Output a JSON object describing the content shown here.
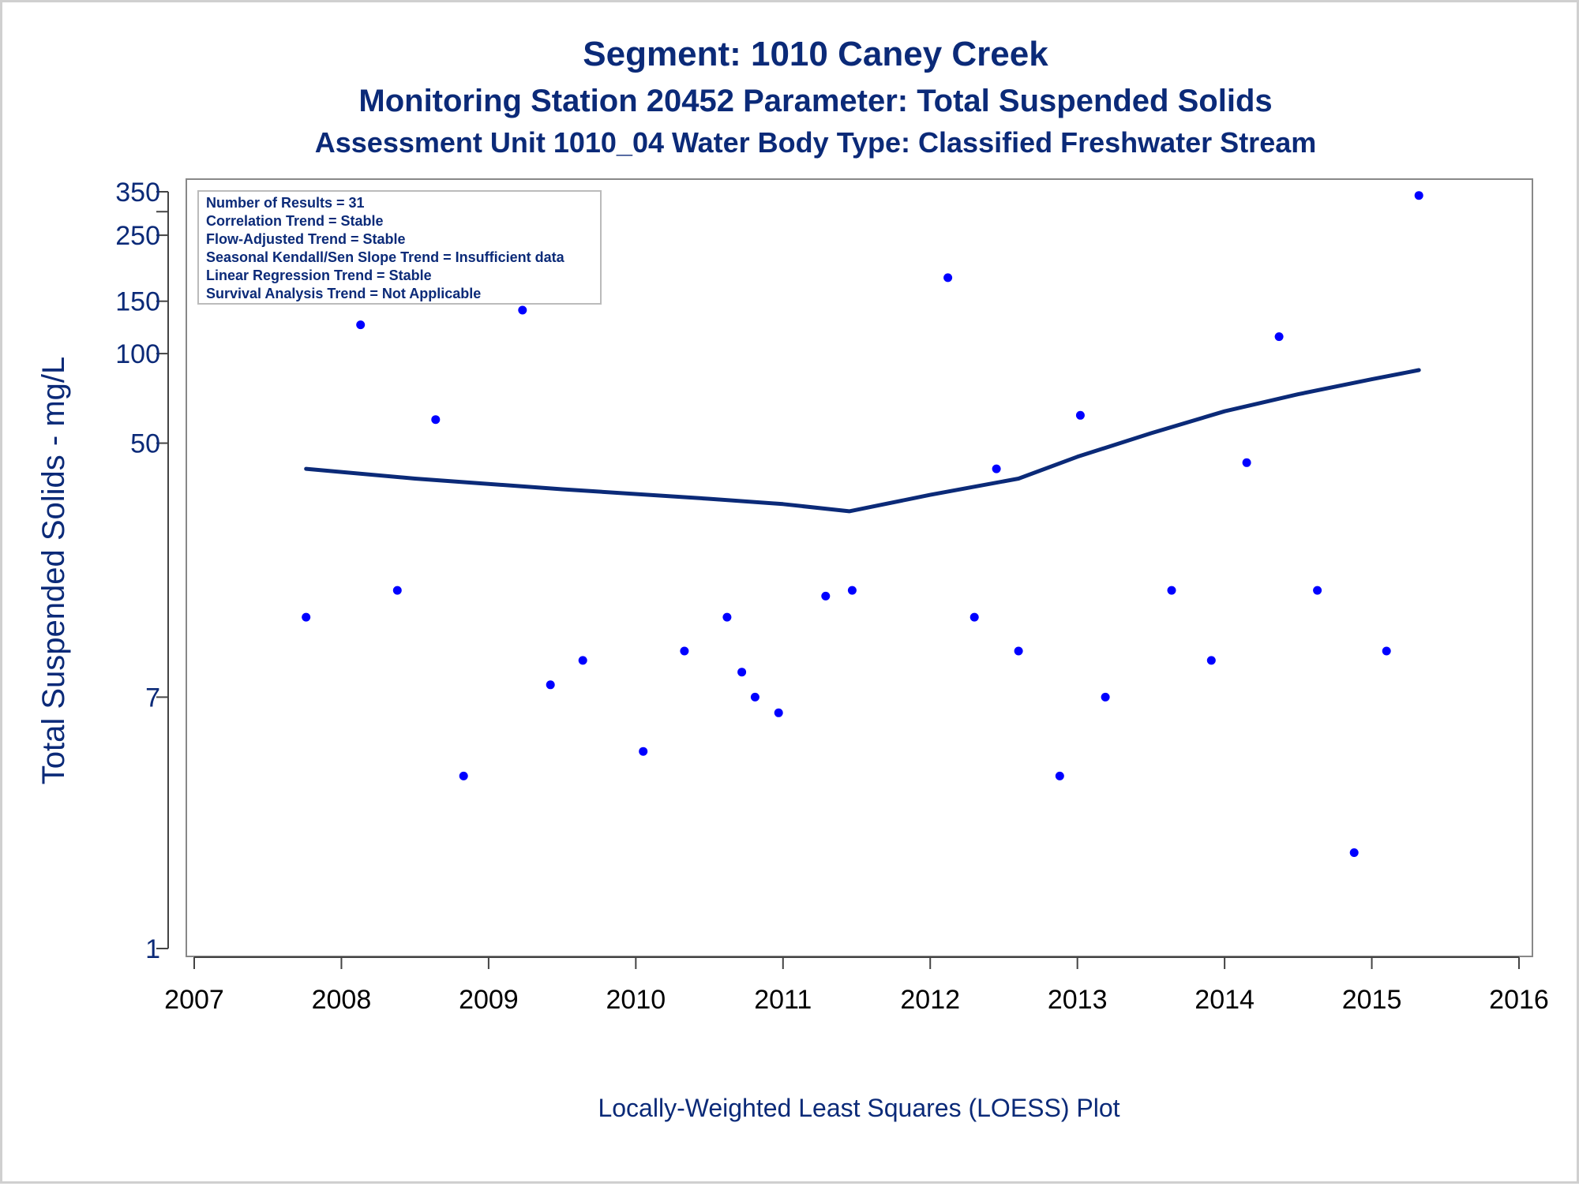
{
  "colors": {
    "title": "#0b2a78",
    "axis_label": "#0b2a78",
    "tick_label": "#000000",
    "frame": "#888888",
    "points": "#0000ff",
    "loess_line": "#0b2a78"
  },
  "stats_box": [
    "Number of Results = 31",
    "Correlation Trend = Stable",
    "Flow-Adjusted Trend = Stable",
    "Seasonal Kendall/Sen Slope Trend = Insufficient data",
    "Linear Regression Trend = Stable",
    "Survival Analysis Trend = Not Applicable"
  ],
  "footer": "Locally-Weighted Least Squares (LOESS) Plot",
  "chart_data": {
    "type": "scatter",
    "title": "Segment: 1010  Caney Creek",
    "subtitle": "Monitoring Station 20452 Parameter: Total Suspended Solids",
    "subtitle2": "Assessment Unit 1010_04   Water Body Type: Classified Freshwater Stream",
    "xlabel": "",
    "ylabel": "Total Suspended Solids - mg/L",
    "xlim": [
      2007,
      2016
    ],
    "ylim": [
      1,
      350
    ],
    "y_scale": "log",
    "x_ticks": [
      "2007",
      "2008",
      "2009",
      "2010",
      "2011",
      "2012",
      "2013",
      "2014",
      "2015",
      "2016"
    ],
    "y_ticks": [
      "1",
      "7",
      "50",
      "100",
      "150",
      "250",
      "350"
    ],
    "y_tick_values": [
      1,
      7,
      50,
      100,
      150,
      250,
      350
    ],
    "grid": false,
    "legend": "top-left",
    "series": [
      {
        "kind": "points",
        "points": [
          {
            "x": 2007.76,
            "y": 13
          },
          {
            "x": 2008.13,
            "y": 125
          },
          {
            "x": 2008.38,
            "y": 16
          },
          {
            "x": 2008.64,
            "y": 60
          },
          {
            "x": 2008.83,
            "y": 3.8
          },
          {
            "x": 2009.23,
            "y": 140
          },
          {
            "x": 2009.42,
            "y": 7.7
          },
          {
            "x": 2009.64,
            "y": 9.3
          },
          {
            "x": 2010.05,
            "y": 4.6
          },
          {
            "x": 2010.33,
            "y": 10
          },
          {
            "x": 2010.62,
            "y": 13
          },
          {
            "x": 2010.72,
            "y": 8.5
          },
          {
            "x": 2010.81,
            "y": 7
          },
          {
            "x": 2010.97,
            "y": 6.2
          },
          {
            "x": 2011.29,
            "y": 15.3
          },
          {
            "x": 2011.47,
            "y": 16
          },
          {
            "x": 2012.12,
            "y": 180
          },
          {
            "x": 2012.3,
            "y": 13
          },
          {
            "x": 2012.45,
            "y": 41
          },
          {
            "x": 2012.6,
            "y": 10
          },
          {
            "x": 2012.88,
            "y": 3.8
          },
          {
            "x": 2013.02,
            "y": 62
          },
          {
            "x": 2013.19,
            "y": 7
          },
          {
            "x": 2013.64,
            "y": 16
          },
          {
            "x": 2013.91,
            "y": 9.3
          },
          {
            "x": 2014.15,
            "y": 43
          },
          {
            "x": 2014.37,
            "y": 114
          },
          {
            "x": 2014.63,
            "y": 16
          },
          {
            "x": 2014.88,
            "y": 2.1
          },
          {
            "x": 2015.1,
            "y": 10
          },
          {
            "x": 2015.32,
            "y": 340
          }
        ]
      },
      {
        "kind": "loess",
        "points": [
          {
            "x": 2007.76,
            "y": 41
          },
          {
            "x": 2008.5,
            "y": 38
          },
          {
            "x": 2009.5,
            "y": 35
          },
          {
            "x": 2010.5,
            "y": 32.5
          },
          {
            "x": 2011.0,
            "y": 31.2
          },
          {
            "x": 2011.45,
            "y": 29.5
          },
          {
            "x": 2012.0,
            "y": 33.5
          },
          {
            "x": 2012.6,
            "y": 38
          },
          {
            "x": 2013.0,
            "y": 45
          },
          {
            "x": 2013.5,
            "y": 54
          },
          {
            "x": 2014.0,
            "y": 64
          },
          {
            "x": 2014.5,
            "y": 73
          },
          {
            "x": 2015.0,
            "y": 82
          },
          {
            "x": 2015.32,
            "y": 88
          }
        ]
      }
    ]
  }
}
